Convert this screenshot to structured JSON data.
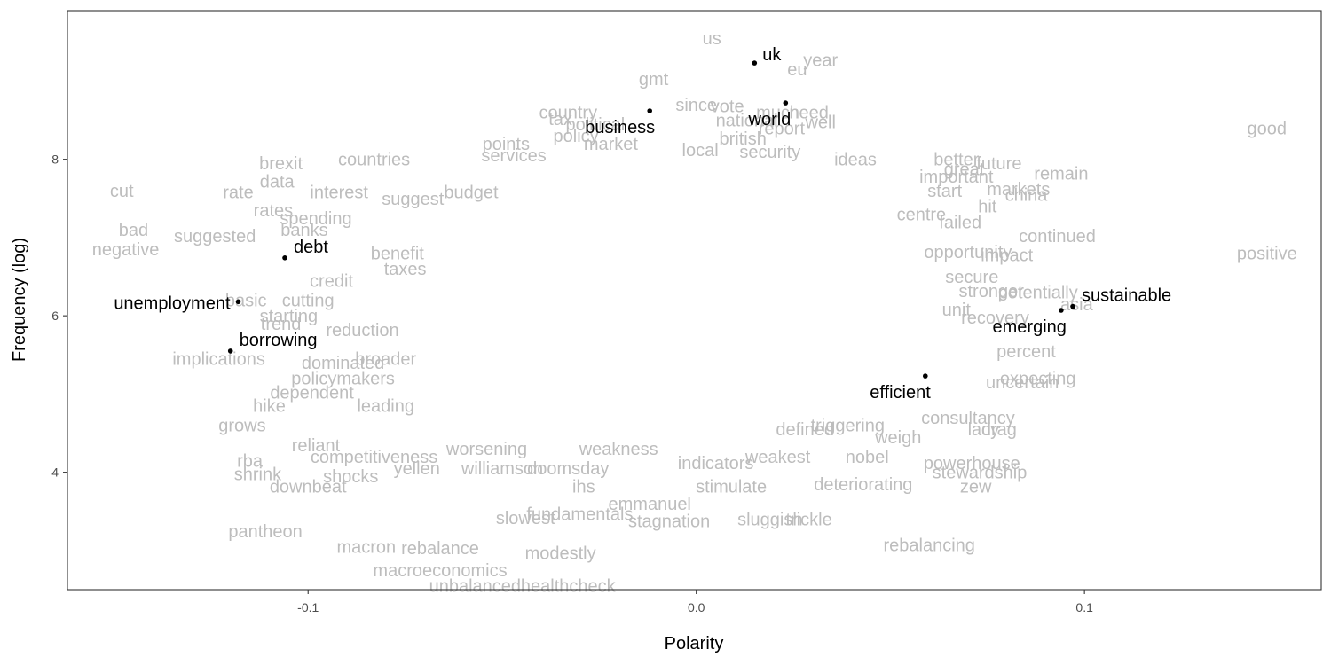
{
  "chart_data": {
    "type": "scatter",
    "xlabel": "Polarity",
    "ylabel": "Frequency (log)",
    "xlim": [
      -0.162,
      0.161
    ],
    "ylim": [
      2.5,
      9.9
    ],
    "x_ticks": [
      "-0.1",
      "0.0",
      "0.1"
    ],
    "x_tick_values": [
      -0.1,
      0.0,
      0.1
    ],
    "y_ticks": [
      "4",
      "6",
      "8"
    ],
    "y_tick_values": [
      4,
      6,
      8
    ],
    "grid": false,
    "highlighted_words": [
      {
        "label": "uk",
        "x": 0.015,
        "y": 9.23,
        "label_pos": "right"
      },
      {
        "label": "world",
        "x": 0.023,
        "y": 8.72,
        "label_pos": "below-left"
      },
      {
        "label": "business",
        "x": -0.012,
        "y": 8.62,
        "label_pos": "below-left"
      },
      {
        "label": "debt",
        "x": -0.106,
        "y": 6.74,
        "label_pos": "above-right"
      },
      {
        "label": "unemployment",
        "x": -0.118,
        "y": 6.18,
        "label_pos": "left"
      },
      {
        "label": "borrowing",
        "x": -0.12,
        "y": 5.55,
        "label_pos": "above-right"
      },
      {
        "label": "sustainable",
        "x": 0.097,
        "y": 6.12,
        "label_pos": "above-right"
      },
      {
        "label": "emerging",
        "x": 0.094,
        "y": 6.07,
        "label_pos": "below-left"
      },
      {
        "label": "efficient",
        "x": 0.059,
        "y": 5.23,
        "label_pos": "below-left"
      }
    ],
    "background_words": [
      {
        "label": "us",
        "x": 0.004,
        "y": 9.55
      },
      {
        "label": "year",
        "x": 0.032,
        "y": 9.27
      },
      {
        "label": "eu",
        "x": 0.026,
        "y": 9.15
      },
      {
        "label": "gmt",
        "x": -0.011,
        "y": 9.03
      },
      {
        "label": "since",
        "x": 0.0,
        "y": 8.7
      },
      {
        "label": "vote",
        "x": 0.008,
        "y": 8.68
      },
      {
        "label": "need",
        "x": 0.029,
        "y": 8.6
      },
      {
        "label": "country",
        "x": -0.033,
        "y": 8.6
      },
      {
        "label": "much",
        "x": 0.021,
        "y": 8.6
      },
      {
        "label": "well",
        "x": 0.032,
        "y": 8.48
      },
      {
        "label": "tax",
        "x": -0.035,
        "y": 8.52
      },
      {
        "label": "political",
        "x": -0.026,
        "y": 8.45
      },
      {
        "label": "national",
        "x": 0.013,
        "y": 8.5
      },
      {
        "label": "report",
        "x": 0.022,
        "y": 8.4
      },
      {
        "label": "policy",
        "x": -0.031,
        "y": 8.3
      },
      {
        "label": "british",
        "x": 0.012,
        "y": 8.27
      },
      {
        "label": "points",
        "x": -0.049,
        "y": 8.2
      },
      {
        "label": "market",
        "x": -0.022,
        "y": 8.2
      },
      {
        "label": "security",
        "x": 0.019,
        "y": 8.1
      },
      {
        "label": "local",
        "x": 0.001,
        "y": 8.12
      },
      {
        "label": "services",
        "x": -0.047,
        "y": 8.05
      },
      {
        "label": "brexit",
        "x": -0.107,
        "y": 7.95
      },
      {
        "label": "countries",
        "x": -0.083,
        "y": 8.0
      },
      {
        "label": "better",
        "x": 0.067,
        "y": 8.0
      },
      {
        "label": "future",
        "x": 0.078,
        "y": 7.95
      },
      {
        "label": "good",
        "x": 0.147,
        "y": 8.4
      },
      {
        "label": "ideas",
        "x": 0.041,
        "y": 8.0
      },
      {
        "label": "great",
        "x": 0.069,
        "y": 7.88
      },
      {
        "label": "remain",
        "x": 0.094,
        "y": 7.82
      },
      {
        "label": "important",
        "x": 0.067,
        "y": 7.78
      },
      {
        "label": "data",
        "x": -0.108,
        "y": 7.72
      },
      {
        "label": "cut",
        "x": -0.148,
        "y": 7.6
      },
      {
        "label": "rate",
        "x": -0.118,
        "y": 7.58
      },
      {
        "label": "interest",
        "x": -0.092,
        "y": 7.58
      },
      {
        "label": "suggest",
        "x": -0.073,
        "y": 7.5
      },
      {
        "label": "budget",
        "x": -0.058,
        "y": 7.58
      },
      {
        "label": "markets",
        "x": 0.083,
        "y": 7.62
      },
      {
        "label": "china",
        "x": 0.085,
        "y": 7.55
      },
      {
        "label": "start",
        "x": 0.064,
        "y": 7.6
      },
      {
        "label": "rates",
        "x": -0.109,
        "y": 7.35
      },
      {
        "label": "hit",
        "x": 0.075,
        "y": 7.4
      },
      {
        "label": "failed",
        "x": 0.068,
        "y": 7.2
      },
      {
        "label": "centre",
        "x": 0.058,
        "y": 7.3
      },
      {
        "label": "spending",
        "x": -0.098,
        "y": 7.25
      },
      {
        "label": "banks",
        "x": -0.101,
        "y": 7.1
      },
      {
        "label": "bad",
        "x": -0.145,
        "y": 7.1
      },
      {
        "label": "suggested",
        "x": -0.124,
        "y": 7.02
      },
      {
        "label": "negative",
        "x": -0.147,
        "y": 6.85
      },
      {
        "label": "continued",
        "x": 0.093,
        "y": 7.02
      },
      {
        "label": "positive",
        "x": 0.147,
        "y": 6.8
      },
      {
        "label": "benefit",
        "x": -0.077,
        "y": 6.8
      },
      {
        "label": "opportunity",
        "x": 0.07,
        "y": 6.82
      },
      {
        "label": "impact",
        "x": 0.08,
        "y": 6.78
      },
      {
        "label": "taxes",
        "x": -0.075,
        "y": 6.6
      },
      {
        "label": "credit",
        "x": -0.094,
        "y": 6.45
      },
      {
        "label": "secure",
        "x": 0.071,
        "y": 6.5
      },
      {
        "label": "potentially",
        "x": 0.088,
        "y": 6.3
      },
      {
        "label": "stronger",
        "x": 0.076,
        "y": 6.32
      },
      {
        "label": "basic",
        "x": -0.116,
        "y": 6.2
      },
      {
        "label": "cutting",
        "x": -0.1,
        "y": 6.2
      },
      {
        "label": "unit",
        "x": 0.067,
        "y": 6.08
      },
      {
        "label": "recovery",
        "x": 0.077,
        "y": 5.98
      },
      {
        "label": "asia",
        "x": 0.098,
        "y": 6.15
      },
      {
        "label": "trend",
        "x": -0.107,
        "y": 5.9
      },
      {
        "label": "reduction",
        "x": -0.086,
        "y": 5.82
      },
      {
        "label": "starting",
        "x": -0.105,
        "y": 6.0
      },
      {
        "label": "implications",
        "x": -0.123,
        "y": 5.45
      },
      {
        "label": "dominated",
        "x": -0.091,
        "y": 5.4
      },
      {
        "label": "broader",
        "x": -0.08,
        "y": 5.45
      },
      {
        "label": "policymakers",
        "x": -0.091,
        "y": 5.2
      },
      {
        "label": "percent",
        "x": 0.085,
        "y": 5.55
      },
      {
        "label": "expecting",
        "x": 0.088,
        "y": 5.2
      },
      {
        "label": "uncertain",
        "x": 0.084,
        "y": 5.15
      },
      {
        "label": "dependent",
        "x": -0.099,
        "y": 5.02
      },
      {
        "label": "hike",
        "x": -0.11,
        "y": 4.85
      },
      {
        "label": "leading",
        "x": -0.08,
        "y": 4.85
      },
      {
        "label": "consultancy",
        "x": 0.07,
        "y": 4.7
      },
      {
        "label": "grows",
        "x": -0.117,
        "y": 4.6
      },
      {
        "label": "lacy",
        "x": 0.074,
        "y": 4.55
      },
      {
        "label": "drag",
        "x": 0.078,
        "y": 4.55
      },
      {
        "label": "triggering",
        "x": 0.039,
        "y": 4.6
      },
      {
        "label": "defined",
        "x": 0.028,
        "y": 4.55
      },
      {
        "label": "weigh",
        "x": 0.052,
        "y": 4.45
      },
      {
        "label": "reliant",
        "x": -0.098,
        "y": 4.35
      },
      {
        "label": "competitiveness",
        "x": -0.083,
        "y": 4.2
      },
      {
        "label": "worsening",
        "x": -0.054,
        "y": 4.3
      },
      {
        "label": "weakness",
        "x": -0.02,
        "y": 4.3
      },
      {
        "label": "weakest",
        "x": 0.021,
        "y": 4.2
      },
      {
        "label": "nobel",
        "x": 0.044,
        "y": 4.2
      },
      {
        "label": "powerhouse",
        "x": 0.071,
        "y": 4.12
      },
      {
        "label": "stewardship",
        "x": 0.073,
        "y": 4.0
      },
      {
        "label": "rba",
        "x": -0.115,
        "y": 4.15
      },
      {
        "label": "shrink",
        "x": -0.113,
        "y": 3.98
      },
      {
        "label": "shocks",
        "x": -0.089,
        "y": 3.95
      },
      {
        "label": "yellen",
        "x": -0.072,
        "y": 4.05
      },
      {
        "label": "williamson",
        "x": -0.05,
        "y": 4.05
      },
      {
        "label": "doomsday",
        "x": -0.033,
        "y": 4.05
      },
      {
        "label": "indicators",
        "x": 0.005,
        "y": 4.12
      },
      {
        "label": "deteriorating",
        "x": 0.043,
        "y": 3.85
      },
      {
        "label": "zew",
        "x": 0.072,
        "y": 3.82
      },
      {
        "label": "downbeat",
        "x": -0.1,
        "y": 3.82
      },
      {
        "label": "ihs",
        "x": -0.029,
        "y": 3.82
      },
      {
        "label": "stimulate",
        "x": 0.009,
        "y": 3.82
      },
      {
        "label": "emmanuel",
        "x": -0.012,
        "y": 3.6
      },
      {
        "label": "fundamentals",
        "x": -0.03,
        "y": 3.47
      },
      {
        "label": "slowest",
        "x": -0.044,
        "y": 3.42
      },
      {
        "label": "stagnation",
        "x": -0.007,
        "y": 3.38
      },
      {
        "label": "sluggish",
        "x": 0.019,
        "y": 3.4
      },
      {
        "label": "trickle",
        "x": 0.029,
        "y": 3.4
      },
      {
        "label": "pantheon",
        "x": -0.111,
        "y": 3.25
      },
      {
        "label": "macron",
        "x": -0.085,
        "y": 3.05
      },
      {
        "label": "rebalance",
        "x": -0.066,
        "y": 3.03
      },
      {
        "label": "rebalancing",
        "x": 0.06,
        "y": 3.07
      },
      {
        "label": "modestly",
        "x": -0.035,
        "y": 2.97
      },
      {
        "label": "macroeconomics",
        "x": -0.066,
        "y": 2.75
      },
      {
        "label": "unbalanced",
        "x": -0.057,
        "y": 2.55
      },
      {
        "label": "healthcheck",
        "x": -0.033,
        "y": 2.55
      }
    ]
  }
}
